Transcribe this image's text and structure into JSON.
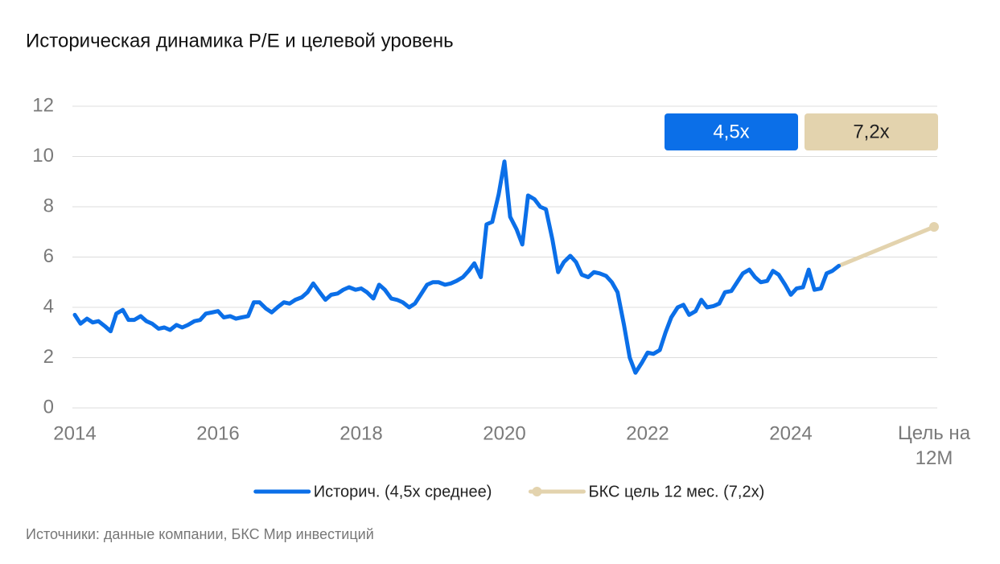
{
  "chart_data": {
    "type": "line",
    "title": "Историческая динамика P/E и целевой уровень",
    "source": "Источники: данные компании, БКС Мир инвестиций",
    "xlim": [
      2014,
      2026
    ],
    "xticks": [
      2014,
      2016,
      2018,
      2020,
      2022,
      2024,
      {
        "value": 2026,
        "label": "Цель на 12М"
      }
    ],
    "ylim": [
      0,
      12
    ],
    "yticks": [
      0,
      2,
      4,
      6,
      8,
      10,
      12
    ],
    "grid": true,
    "legend": "bottom",
    "badges": [
      {
        "text": "4,5x",
        "color": "#0b6fe8"
      },
      {
        "text": "7,2x",
        "color": "#e3d3ae"
      }
    ],
    "series": [
      {
        "name": "Историч. (4,5x среднее)",
        "color": "#0b6fe8",
        "x": [
          2014,
          2014.08,
          2014.17,
          2014.25,
          2014.33,
          2014.42,
          2014.5,
          2014.58,
          2014.67,
          2014.75,
          2014.83,
          2014.92,
          2015,
          2015.08,
          2015.17,
          2015.25,
          2015.33,
          2015.42,
          2015.5,
          2015.58,
          2015.67,
          2015.75,
          2015.83,
          2015.92,
          2016,
          2016.08,
          2016.17,
          2016.25,
          2016.33,
          2016.42,
          2016.5,
          2016.58,
          2016.67,
          2016.75,
          2016.83,
          2016.92,
          2017,
          2017.08,
          2017.17,
          2017.25,
          2017.33,
          2017.42,
          2017.5,
          2017.58,
          2017.67,
          2017.75,
          2017.83,
          2017.92,
          2018,
          2018.08,
          2018.17,
          2018.25,
          2018.33,
          2018.42,
          2018.5,
          2018.58,
          2018.67,
          2018.75,
          2018.83,
          2018.92,
          2019,
          2019.08,
          2019.17,
          2019.25,
          2019.33,
          2019.42,
          2019.5,
          2019.58,
          2019.67,
          2019.75,
          2019.83,
          2019.92,
          2020,
          2020.08,
          2020.17,
          2020.25,
          2020.33,
          2020.42,
          2020.5,
          2020.58,
          2020.67,
          2020.75,
          2020.83,
          2020.92,
          2021,
          2021.08,
          2021.17,
          2021.25,
          2021.33,
          2021.42,
          2021.5,
          2021.58,
          2021.67,
          2021.75,
          2021.83,
          2021.92,
          2022,
          2022.08,
          2022.17,
          2022.25,
          2022.33,
          2022.42,
          2022.5,
          2022.58,
          2022.67,
          2022.75,
          2022.83,
          2022.92,
          2023,
          2023.08,
          2023.17,
          2023.25,
          2023.33,
          2023.42,
          2023.5,
          2023.58,
          2023.67,
          2023.75,
          2023.83,
          2023.92,
          2024,
          2024.08,
          2024.17,
          2024.25,
          2024.33,
          2024.42,
          2024.5,
          2024.58,
          2024.67
        ],
        "values": [
          3.7,
          3.35,
          3.55,
          3.4,
          3.45,
          3.25,
          3.05,
          3.75,
          3.9,
          3.5,
          3.5,
          3.65,
          3.45,
          3.35,
          3.15,
          3.2,
          3.1,
          3.3,
          3.2,
          3.3,
          3.45,
          3.5,
          3.75,
          3.8,
          3.85,
          3.6,
          3.65,
          3.55,
          3.6,
          3.65,
          4.2,
          4.2,
          3.95,
          3.8,
          4.0,
          4.2,
          4.15,
          4.3,
          4.4,
          4.6,
          4.95,
          4.6,
          4.3,
          4.5,
          4.55,
          4.7,
          4.8,
          4.7,
          4.75,
          4.6,
          4.35,
          4.9,
          4.7,
          4.35,
          4.3,
          4.2,
          4.0,
          4.15,
          4.5,
          4.9,
          5.0,
          5.0,
          4.9,
          4.95,
          5.05,
          5.2,
          5.45,
          5.75,
          5.2,
          7.3,
          7.4,
          8.5,
          9.8,
          7.6,
          7.1,
          6.5,
          8.45,
          8.3,
          8.0,
          7.9,
          6.7,
          5.4,
          5.8,
          6.05,
          5.8,
          5.3,
          5.2,
          5.4,
          5.35,
          5.25,
          5.0,
          4.6,
          3.3,
          2.0,
          1.4,
          1.8,
          2.2,
          2.15,
          2.3,
          3.0,
          3.6,
          4.0,
          4.1,
          3.7,
          3.85,
          4.3,
          4.0,
          4.05,
          4.15,
          4.6,
          4.65,
          5.0,
          5.35,
          5.5,
          5.2,
          5.0,
          5.05,
          5.45,
          5.3,
          4.9,
          4.5,
          4.75,
          4.8,
          5.5,
          4.7,
          4.75,
          5.35,
          5.45,
          5.65
        ]
      },
      {
        "name": "БКС цель 12 мес. (7,2x)",
        "color": "#e3d3ae",
        "marker_at_end": true,
        "x": [
          2024.67,
          2026
        ],
        "values": [
          5.65,
          7.2
        ]
      }
    ]
  }
}
